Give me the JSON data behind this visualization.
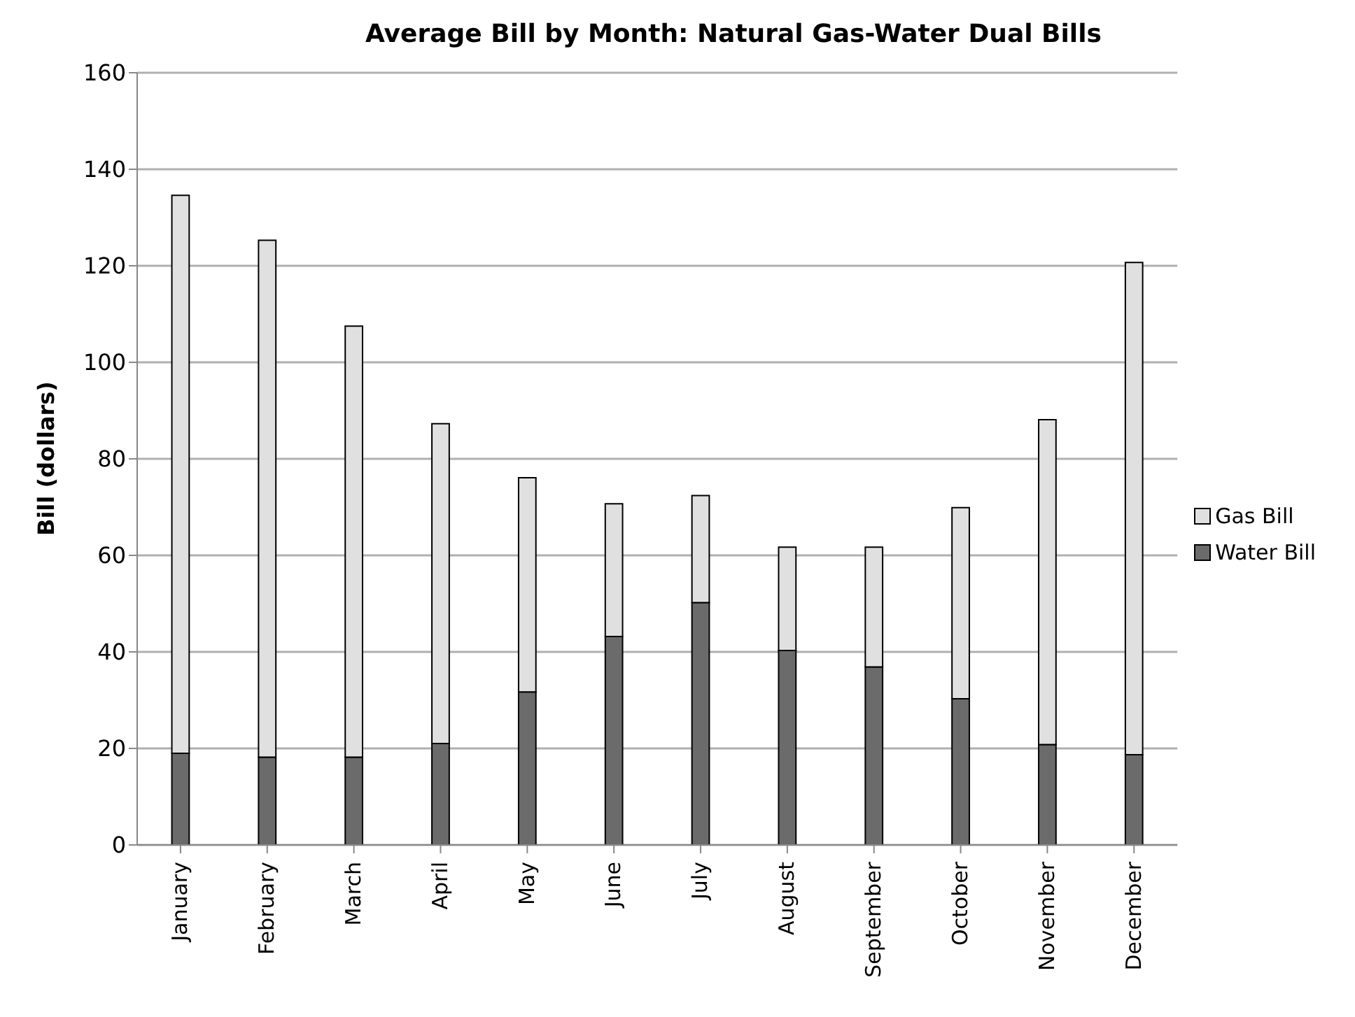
{
  "chart_data": {
    "type": "bar",
    "title": "Average Bill by Month: Natural Gas-Water Dual Bills",
    "ylabel": "Bill (dollars)",
    "categories": [
      "January",
      "February",
      "March",
      "April",
      "May",
      "June",
      "July",
      "August",
      "September",
      "October",
      "November",
      "December"
    ],
    "stacked": true,
    "series": [
      {
        "name": "Water Bill",
        "color": "#6b6b6b",
        "values": [
          19.0,
          18.2,
          18.2,
          21.0,
          31.7,
          43.2,
          50.2,
          40.3,
          36.9,
          30.3,
          20.8,
          18.7
        ]
      },
      {
        "name": "Gas Bill",
        "color": "#e0e0e0",
        "values": [
          115.6,
          107.1,
          89.3,
          66.3,
          44.4,
          27.5,
          22.2,
          21.4,
          24.8,
          39.6,
          67.3,
          102.0
        ]
      }
    ],
    "ylim": [
      0,
      160
    ],
    "yticks": [
      0,
      20,
      40,
      60,
      80,
      100,
      120,
      140,
      160
    ],
    "grid": "y",
    "legend": "right"
  }
}
